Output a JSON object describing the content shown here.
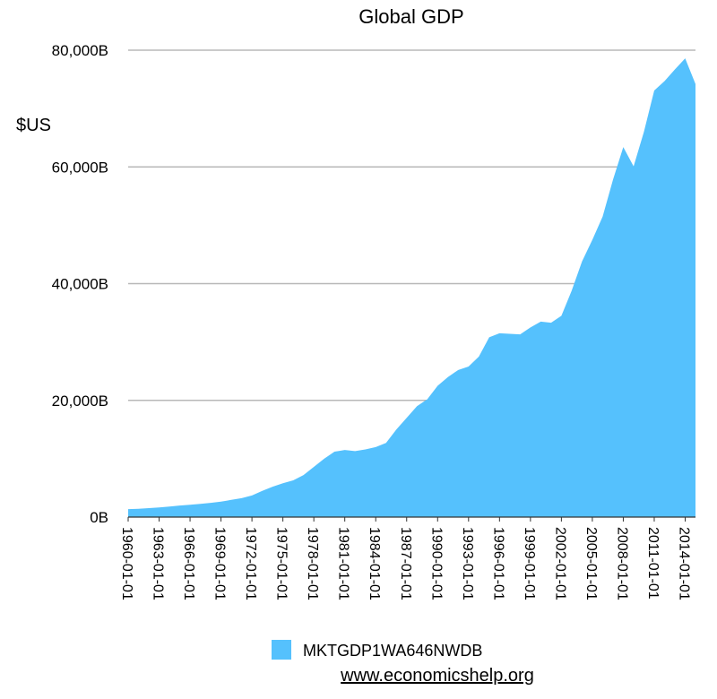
{
  "chart_data": {
    "type": "area",
    "title": "Global GDP",
    "ylabel": "$US",
    "xlabel": "",
    "ylim": [
      0,
      80000
    ],
    "yticks": [
      0,
      20000,
      40000,
      60000,
      80000
    ],
    "ytick_labels": [
      "0B",
      "20,000B",
      "40,000B",
      "60,000B",
      "80,000B"
    ],
    "x_tick_labels": [
      "1960-01-01",
      "1963-01-01",
      "1966-01-01",
      "1969-01-01",
      "1972-01-01",
      "1975-01-01",
      "1978-01-01",
      "1981-01-01",
      "1984-01-01",
      "1987-01-01",
      "1990-01-01",
      "1993-01-01",
      "1996-01-01",
      "1999-01-01",
      "2002-01-01",
      "2005-01-01",
      "2008-01-01",
      "2011-01-01",
      "2014-01-01"
    ],
    "grid": true,
    "legend_position": "bottom",
    "color": "#55C1FD",
    "series": [
      {
        "name": "MKTGDP1WA646NWDB",
        "x": [
          1960,
          1961,
          1962,
          1963,
          1964,
          1965,
          1966,
          1967,
          1968,
          1969,
          1970,
          1971,
          1972,
          1973,
          1974,
          1975,
          1976,
          1977,
          1978,
          1979,
          1980,
          1981,
          1982,
          1983,
          1984,
          1985,
          1986,
          1987,
          1988,
          1989,
          1990,
          1991,
          1992,
          1993,
          1994,
          1995,
          1996,
          1997,
          1998,
          1999,
          2000,
          2001,
          2002,
          2003,
          2004,
          2005,
          2006,
          2007,
          2008,
          2009,
          2010,
          2011,
          2012,
          2013,
          2014,
          2015
        ],
        "values": [
          1370,
          1420,
          1530,
          1650,
          1800,
          1970,
          2120,
          2270,
          2430,
          2650,
          2950,
          3250,
          3700,
          4500,
          5200,
          5800,
          6300,
          7200,
          8600,
          10000,
          11200,
          11500,
          11300,
          11600,
          12000,
          12700,
          15000,
          17000,
          19000,
          20200,
          22500,
          24000,
          25200,
          25800,
          27500,
          30800,
          31500,
          31400,
          31300,
          32500,
          33500,
          33300,
          34500,
          38800,
          43800,
          47500,
          51500,
          57800,
          63400,
          60100,
          66000,
          73100,
          74700,
          76700,
          78600,
          74200
        ]
      }
    ]
  },
  "legend": {
    "label": "MKTGDP1WA646NWDB",
    "color": "#55C1FD"
  },
  "source": {
    "text": "www.economicshelp.org"
  }
}
